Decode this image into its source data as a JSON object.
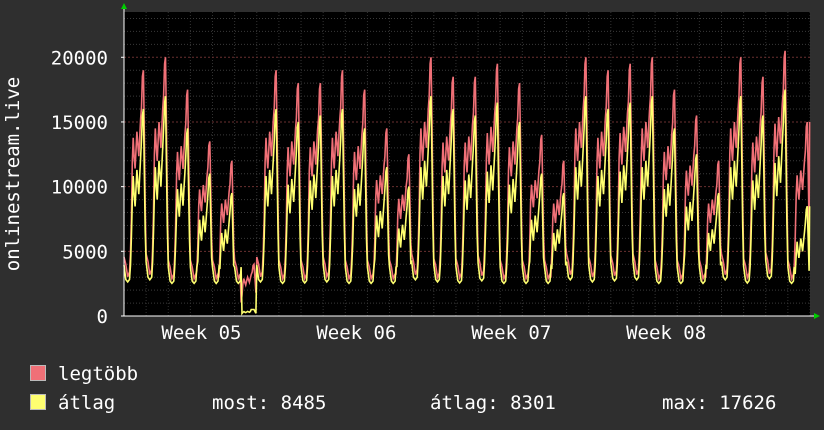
{
  "chart_data": {
    "type": "line",
    "ylabel": "onlinestream.live",
    "ylim": [
      0,
      23500
    ],
    "yticks": [
      0,
      5000,
      10000,
      15000,
      20000
    ],
    "week_labels": [
      "Week 05",
      "Week 06",
      "Week 07",
      "Week 08"
    ],
    "week_positions_days": [
      3.5,
      10.5,
      17.5,
      24.5
    ],
    "x_range_days": [
      0,
      31
    ],
    "grid": true,
    "daily_profile": {
      "hours": [
        0,
        2,
        4,
        6,
        7,
        8,
        9,
        10,
        11,
        12,
        13,
        14,
        15,
        16,
        17,
        18,
        19,
        20,
        21,
        22,
        23,
        24
      ],
      "max": [
        4800,
        4200,
        3200,
        3600,
        5200,
        8000,
        12500,
        14500,
        13000,
        12000,
        13500,
        15000,
        14000,
        13000,
        14500,
        16000,
        17000,
        19500,
        20000,
        15000,
        9000,
        4800
      ],
      "avg": [
        4200,
        3000,
        2800,
        3000,
        4200,
        6500,
        9500,
        11500,
        10000,
        9000,
        10500,
        12000,
        11000,
        10000,
        11500,
        13000,
        14500,
        16500,
        17000,
        12000,
        7000,
        4200
      ]
    },
    "daily_peak_max": [
      19000,
      20000,
      17500,
      13500,
      12000,
      4000,
      19000,
      18000,
      18000,
      19000,
      17500,
      14500,
      12500,
      20000,
      18500,
      18500,
      19500,
      18000,
      14000,
      12000,
      20000,
      19000,
      19500,
      20000,
      17500,
      15500,
      12000,
      20000,
      18500,
      20500,
      15000
    ],
    "daily_peak_avg": [
      16000,
      17000,
      14500,
      11000,
      9500,
      500,
      16000,
      15000,
      15500,
      16000,
      14500,
      11500,
      10000,
      17000,
      16000,
      15500,
      16500,
      15000,
      11000,
      9500,
      17000,
      16000,
      16500,
      17000,
      14500,
      12500,
      9500,
      17000,
      15500,
      17500,
      8485
    ],
    "series": [
      {
        "name": "legtöbb",
        "color": "#f07077"
      },
      {
        "name": "átlag",
        "color": "#ffff70"
      }
    ],
    "stats": {
      "most": "8485",
      "atlag": "8301",
      "max": "17626"
    }
  },
  "legend": {
    "max_label": "legtöbb",
    "avg_label": "átlag",
    "now_text": "most: 8485",
    "avg_text": "átlag: 8301",
    "max_text": "max: 17626"
  }
}
